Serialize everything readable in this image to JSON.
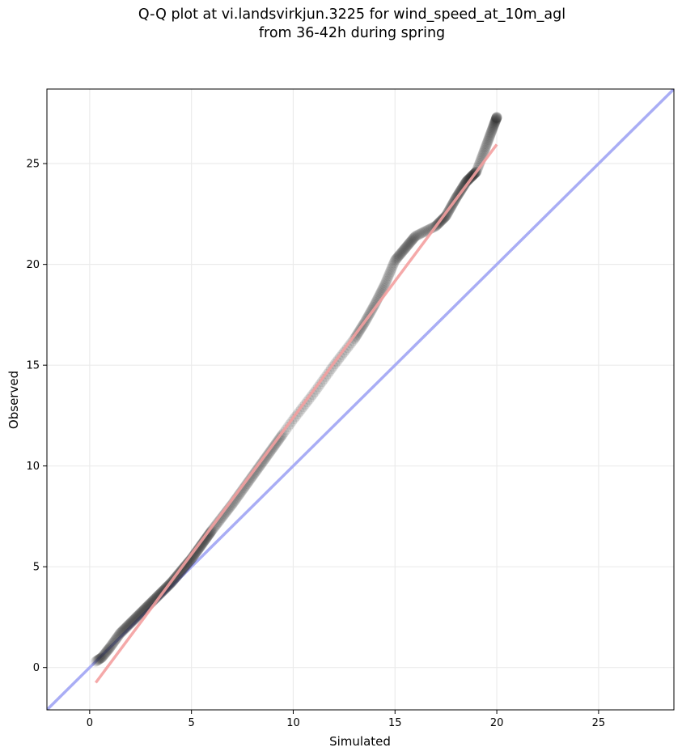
{
  "figure": {
    "title_line1": "Q-Q plot at vi.landsvirkjun.3225 for wind_speed_at_10m_agl",
    "title_line2": "from 36-42h during spring"
  },
  "chart_data": {
    "type": "scatter",
    "title": "Q-Q plot at vi.landsvirkjun.3225 for wind_speed_at_10m_agl from 36-42h during spring",
    "xlabel": "Simulated",
    "ylabel": "Observed",
    "xlim": [
      -2.1,
      28.7
    ],
    "ylim": [
      -2.1,
      28.7
    ],
    "xticks": [
      0,
      5,
      10,
      15,
      20,
      25
    ],
    "yticks": [
      0,
      5,
      10,
      15,
      20,
      25
    ],
    "grid": true,
    "colors": {
      "points": "#222222",
      "fit_line": "#f4a0a0",
      "identity_line": "#a9adf5",
      "grid": "#ebebeb"
    },
    "identity_line": {
      "x": [
        -2.1,
        28.7
      ],
      "y": [
        -2.1,
        28.7
      ]
    },
    "fit_line": {
      "x": [
        0.3,
        20.0
      ],
      "y": [
        -0.75,
        25.95
      ]
    },
    "quantile_knots": {
      "x": [
        0.3,
        0.6,
        1.0,
        1.5,
        2.0,
        2.5,
        3.0,
        3.5,
        4.0,
        4.5,
        5.0,
        5.5,
        6.0,
        7.0,
        8.0,
        9.0,
        10.0,
        11.0,
        12.0,
        13.0,
        13.5,
        14.0,
        14.5,
        15.0,
        15.5,
        16.0,
        17.0,
        17.5,
        18.0,
        18.5,
        19.0,
        20.0
      ],
      "y": [
        0.3,
        0.5,
        1.0,
        1.7,
        2.2,
        2.7,
        3.2,
        3.7,
        4.2,
        4.8,
        5.4,
        6.1,
        6.8,
        8.1,
        9.5,
        10.9,
        12.3,
        13.6,
        15.0,
        16.3,
        17.1,
        18.0,
        19.0,
        20.2,
        20.8,
        21.4,
        21.9,
        22.4,
        23.3,
        24.1,
        24.6,
        27.3
      ]
    },
    "point_count": 520
  }
}
